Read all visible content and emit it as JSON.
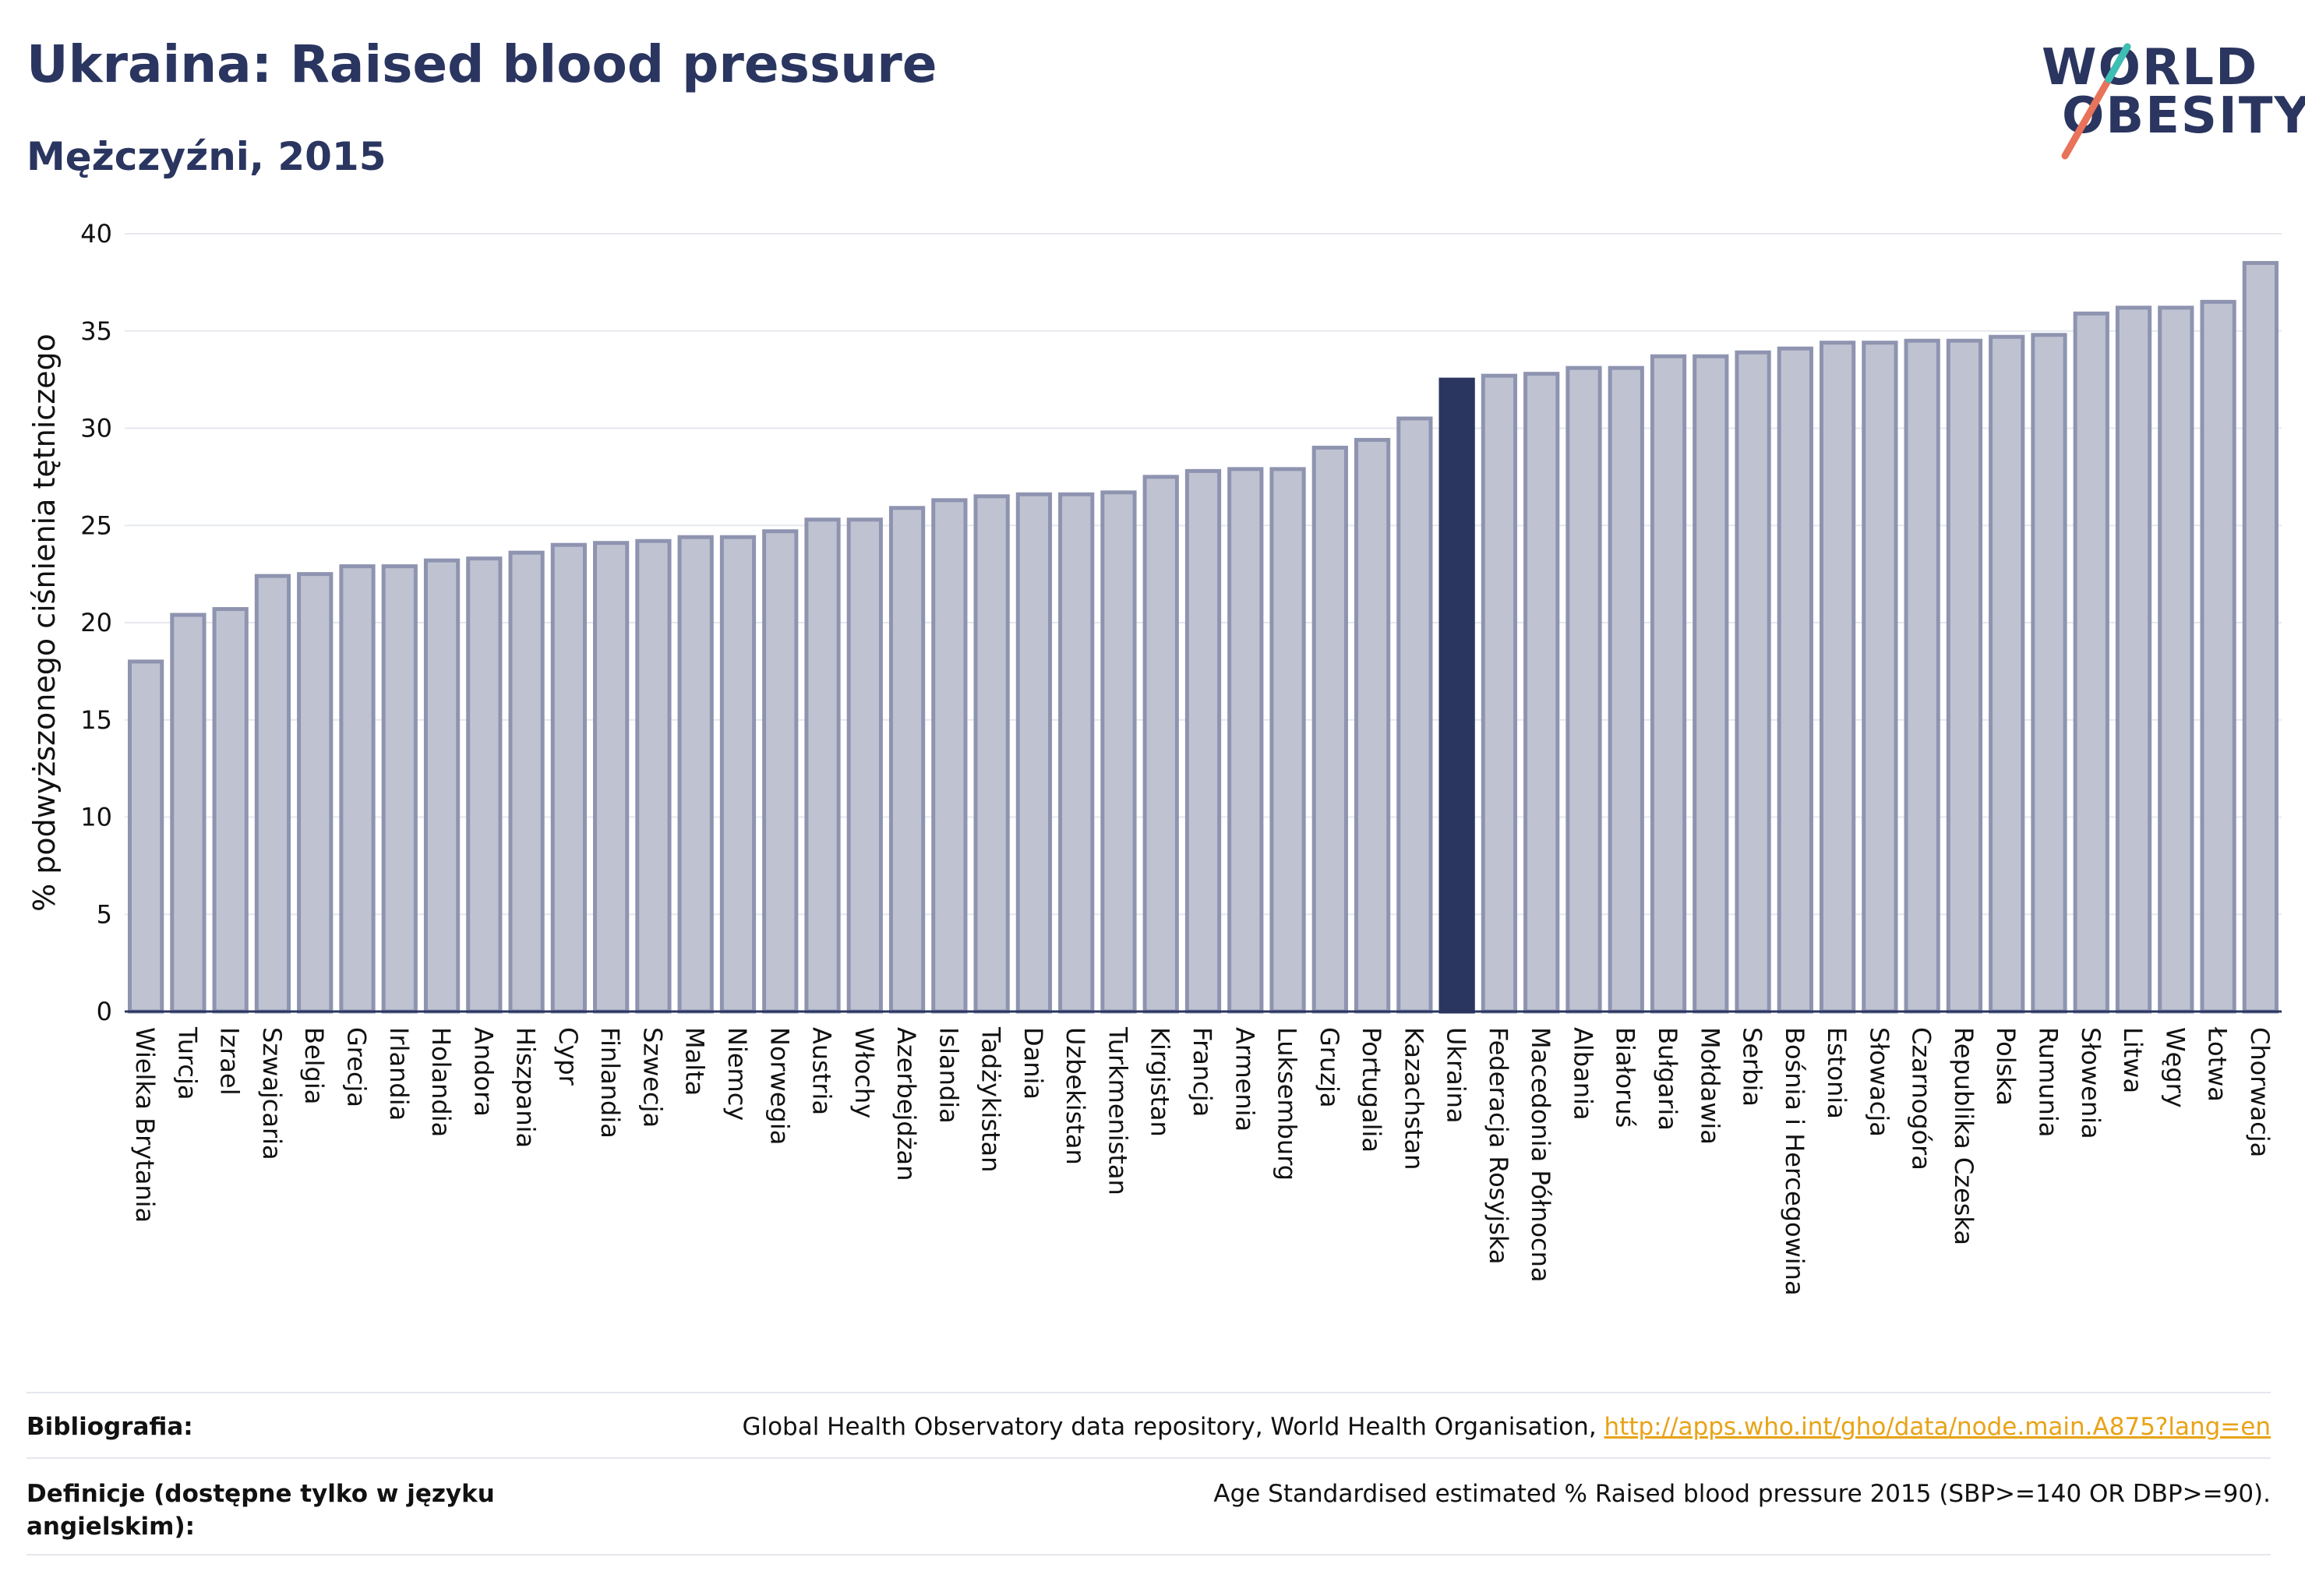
{
  "header": {
    "title": "Ukraina: Raised blood pressure",
    "subtitle": "Mężczyźni, 2015"
  },
  "logo": {
    "line1": "WORLD",
    "line2": "OBESITY",
    "accent_color": "#e8735a",
    "accent_color2": "#3cbfb4"
  },
  "colors": {
    "bar": "#bfc3d1",
    "bar_stroke": "#8e94b0",
    "highlight": "#2a3560",
    "grid": "#e6e8ee",
    "axis": "#2a3560"
  },
  "chart_data": {
    "type": "bar",
    "ylabel": "% podwyższonego ciśnienia tętniczego",
    "ylim": [
      0,
      40
    ],
    "yticks": [
      0,
      5,
      10,
      15,
      20,
      25,
      30,
      35,
      40
    ],
    "highlight": "Ukraina",
    "categories": [
      "Wielka Brytania",
      "Turcja",
      "Izrael",
      "Szwajcaria",
      "Belgia",
      "Grecja",
      "Irlandia",
      "Holandia",
      "Andora",
      "Hiszpania",
      "Cypr",
      "Finlandia",
      "Szwecja",
      "Malta",
      "Niemcy",
      "Norwegia",
      "Austria",
      "Włochy",
      "Azerbejdżan",
      "Islandia",
      "Tadżykistan",
      "Dania",
      "Uzbekistan",
      "Turkmenistan",
      "Kirgistan",
      "Francja",
      "Armenia",
      "Luksemburg",
      "Gruzja",
      "Portugalia",
      "Kazachstan",
      "Ukraina",
      "Federacja Rosyjska",
      "Macedonia Północna",
      "Albania",
      "Białoruś",
      "Bułgaria",
      "Mołdawia",
      "Serbia",
      "Bośnia i Hercegowina",
      "Estonia",
      "Słowacja",
      "Czarnogóra",
      "Republika Czeska",
      "Polska",
      "Rumunia",
      "Słowenia",
      "Litwa",
      "Węgry",
      "Łotwa",
      "Chorwacja"
    ],
    "values": [
      18.0,
      20.4,
      20.7,
      22.4,
      22.5,
      22.9,
      22.9,
      23.2,
      23.3,
      23.6,
      24.0,
      24.1,
      24.2,
      24.4,
      24.4,
      24.7,
      25.3,
      25.3,
      25.9,
      26.3,
      26.5,
      26.6,
      26.6,
      26.7,
      27.5,
      27.8,
      27.9,
      27.9,
      29.0,
      29.4,
      30.5,
      32.5,
      32.7,
      32.8,
      33.1,
      33.1,
      33.7,
      33.7,
      33.9,
      34.1,
      34.4,
      34.4,
      34.5,
      34.5,
      34.7,
      34.8,
      35.9,
      36.2,
      36.2,
      36.5,
      38.5
    ]
  },
  "footer": {
    "bibliography_label": "Bibliografia:",
    "bibliography_text": "Global Health Observatory data repository, World Health Organisation,",
    "bibliography_link": "http://apps.who.int/gho/data/node.main.A875?lang=en",
    "definitions_label": "Definicje (dostępne tylko w języku angielskim):",
    "definitions_text": "Age Standardised estimated % Raised blood pressure 2015 (SBP>=140 OR DBP>=90)."
  }
}
